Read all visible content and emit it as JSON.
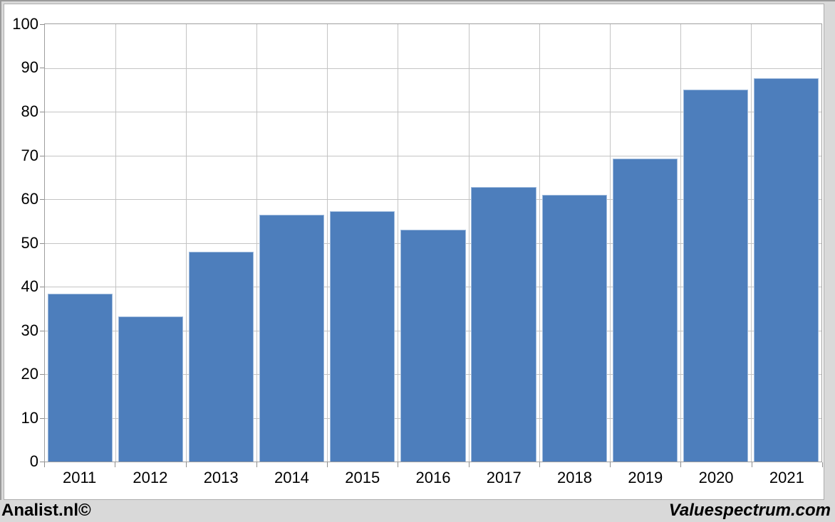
{
  "window": {
    "background_color": "#D9D9D9",
    "frame_edge_color": "#9A9A9A",
    "panel_background": "#FFFFFF",
    "panel_border_color": "#ACACAC"
  },
  "footer": {
    "left_text": "Analist.nl©",
    "right_text": "Valuespectrum.com",
    "text_color": "#000000"
  },
  "chart_data": {
    "type": "bar",
    "title": "",
    "categories": [
      "2011",
      "2012",
      "2013",
      "2014",
      "2015",
      "2016",
      "2017",
      "2018",
      "2019",
      "2020",
      "2021"
    ],
    "values": [
      38.4,
      33.1,
      47.9,
      56.5,
      57.2,
      53.0,
      62.8,
      61.0,
      69.2,
      85.0,
      87.7
    ],
    "xlabel": "",
    "ylabel": "",
    "ylim": [
      0,
      100
    ],
    "ytick_step": 10,
    "yticks": [
      0,
      10,
      20,
      30,
      40,
      50,
      60,
      70,
      80,
      90,
      100
    ],
    "grid": true,
    "legend": "none",
    "bar_color": "#4D7EBC",
    "bar_border_color": "#9FBBDD",
    "gridline_color": "#C4C4C4",
    "plot_border_color": "#9E9E9E",
    "tick_color": "#8E8E8E",
    "axis_text_color": "#000000"
  }
}
